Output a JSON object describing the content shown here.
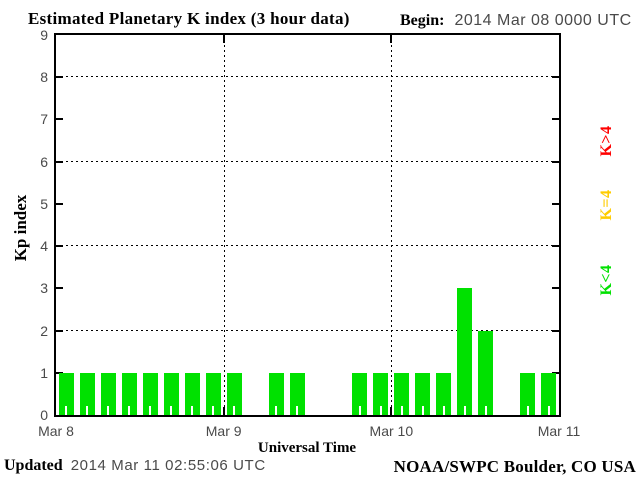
{
  "title": "Estimated Planetary K index (3 hour data)",
  "begin": {
    "label": "Begin:",
    "value": "2014 Mar 08 0000 UTC"
  },
  "footer": {
    "updated_label": "Updated",
    "updated_value": "2014 Mar 11 02:55:06 UTC",
    "source": "NOAA/SWPC Boulder, CO USA"
  },
  "chart_data": {
    "type": "bar",
    "title": "Estimated Planetary K index (3 hour data)",
    "xlabel": "Universal Time",
    "ylabel": "Kp index",
    "ylim": [
      0,
      9
    ],
    "yticks": [
      0,
      1,
      2,
      3,
      4,
      5,
      6,
      7,
      8,
      9
    ],
    "grid_y": [
      2,
      4,
      6,
      8
    ],
    "grid_x_days": [
      1,
      2
    ],
    "x_day_labels": [
      "Mar 8",
      "Mar 9",
      "Mar 10",
      "Mar 11"
    ],
    "bin_hours": 3,
    "bins_per_day": 8,
    "values": [
      1,
      1,
      1,
      1,
      1,
      1,
      1,
      1,
      1,
      0,
      1,
      1,
      0,
      0,
      1,
      1,
      1,
      1,
      1,
      3,
      2,
      0,
      1,
      1
    ],
    "legend": [
      {
        "label": "K>4",
        "color": "#ff0000"
      },
      {
        "label": "K=4",
        "color": "#ffcc00"
      },
      {
        "label": "K<4",
        "color": "#00e100"
      }
    ],
    "color_rule": {
      "below4": "#00e100",
      "equal4": "#ffcc00",
      "above4": "#ff0000"
    },
    "grid_on": true,
    "legend_position": "right-rotated"
  }
}
